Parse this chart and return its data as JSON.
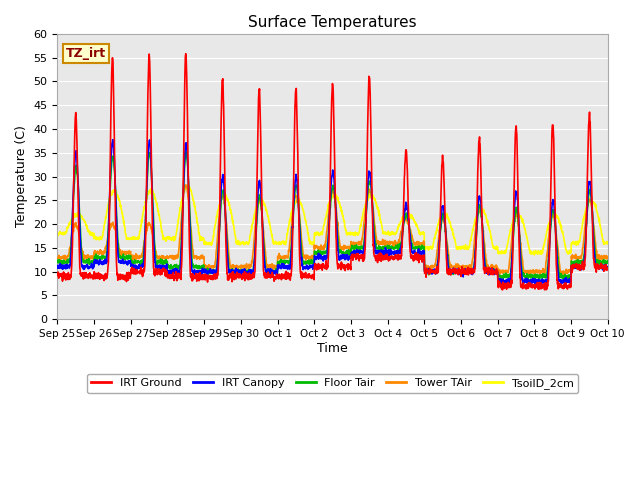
{
  "title": "Surface Temperatures",
  "xlabel": "Time",
  "ylabel": "Temperature (C)",
  "ylim": [
    0,
    60
  ],
  "yticks": [
    0,
    5,
    10,
    15,
    20,
    25,
    30,
    35,
    40,
    45,
    50,
    55,
    60
  ],
  "annotation_text": "TZ_irt",
  "annotation_color": "#8b0000",
  "annotation_bg": "#ffffcc",
  "annotation_border": "#cc8800",
  "bg_color": "#e8e8e8",
  "series": {
    "IRT Ground": {
      "color": "#ff0000",
      "lw": 1.2
    },
    "IRT Canopy": {
      "color": "#0000ff",
      "lw": 1.2
    },
    "Floor Tair": {
      "color": "#00bb00",
      "lw": 1.2
    },
    "Tower TAir": {
      "color": "#ff8800",
      "lw": 1.2
    },
    "TsoilD_2cm": {
      "color": "#ffff00",
      "lw": 1.2
    }
  },
  "x_tick_labels": [
    "Sep 25",
    "Sep 26",
    "Sep 27",
    "Sep 28",
    "Sep 29",
    "Sep 30",
    "Oct 1",
    "Oct 2",
    "Oct 3",
    "Oct 4",
    "Oct 5",
    "Oct 6",
    "Oct 7",
    "Oct 8",
    "Oct 9",
    "Oct 10"
  ],
  "n_days": 15,
  "pts_per_day": 144,
  "irt_ground_peaks": [
    43,
    55,
    55.5,
    56,
    50.5,
    48.5,
    48.5,
    49.5,
    51,
    35.5,
    34,
    38,
    40.5,
    41,
    43
  ],
  "irt_ground_nights": [
    9,
    9,
    10,
    9,
    9,
    9,
    9,
    11,
    13,
    13,
    10,
    10,
    7,
    7,
    11
  ],
  "irt_canopy_peaks": [
    35,
    37.5,
    37.5,
    37,
    30,
    29,
    30,
    31,
    31,
    24,
    24,
    26,
    27,
    25,
    29
  ],
  "irt_canopy_nights": [
    11,
    12,
    11,
    10,
    10,
    10,
    11,
    13,
    14,
    14,
    10,
    10,
    8,
    8,
    11
  ],
  "floor_tair_peaks": [
    32,
    34,
    35,
    35,
    27,
    26,
    28,
    28,
    29,
    22,
    22,
    24,
    23,
    23,
    27
  ],
  "floor_tair_nights": [
    12,
    13,
    12,
    11,
    10,
    10,
    12,
    14,
    15,
    15,
    10,
    10,
    9,
    9,
    12
  ],
  "tower_tair_peaks": [
    20,
    20,
    20,
    28,
    26,
    25,
    26,
    27,
    27,
    21,
    21,
    23,
    22,
    22,
    25
  ],
  "tower_tair_nights": [
    13,
    14,
    13,
    13,
    11,
    11,
    13,
    15,
    16,
    16,
    11,
    11,
    10,
    10,
    13
  ],
  "tsoil_peaks": [
    22,
    27,
    27,
    28,
    26,
    25,
    25,
    26,
    26,
    22,
    22,
    23,
    22,
    22,
    25
  ],
  "tsoil_nights": [
    18,
    17,
    17,
    17,
    16,
    16,
    16,
    18,
    18,
    18,
    15,
    15,
    14,
    14,
    16
  ]
}
